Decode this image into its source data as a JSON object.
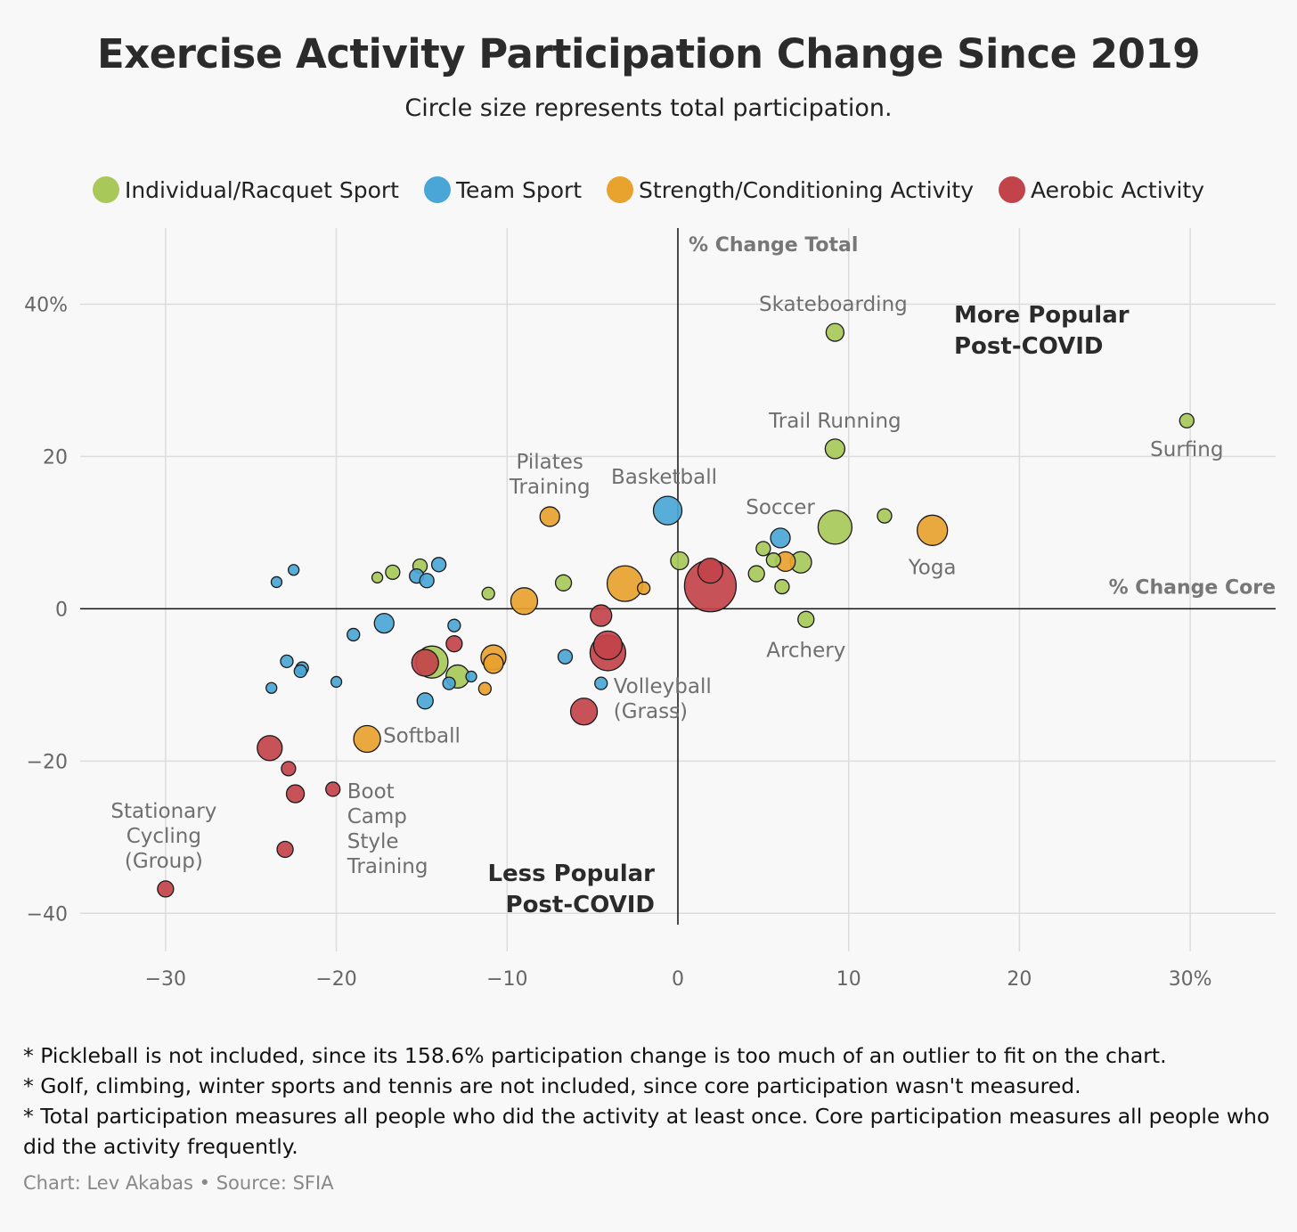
{
  "header": {
    "title": "Exercise Activity Participation Change Since 2019",
    "subtitle": "Circle size represents total participation."
  },
  "chart_data": {
    "type": "scatter",
    "title": "Exercise Activity Participation Change Since 2019",
    "subtitle": "Circle size represents total participation.",
    "xlabel": "% Change Core",
    "ylabel": "% Change Total",
    "xlim": [
      -35,
      35
    ],
    "ylim": [
      -45,
      50
    ],
    "x_ticks": [
      -30,
      -20,
      -10,
      0,
      10,
      20,
      30
    ],
    "x_tick_labels": [
      "−30",
      "−20",
      "−10",
      "0",
      "10",
      "20",
      "30%"
    ],
    "y_ticks": [
      -40,
      -20,
      0,
      20,
      40
    ],
    "y_tick_labels": [
      "−40",
      "−20",
      "0",
      "20",
      "40%"
    ],
    "grid": true,
    "legend_position": "top",
    "size_encoding": "total participation",
    "categories": {
      "individual": {
        "label": "Individual/Racquet Sport",
        "color": "#a8c95a"
      },
      "team": {
        "label": "Team Sport",
        "color": "#4aa6d6"
      },
      "strength": {
        "label": "Strength/Conditioning Activity",
        "color": "#e8a22e"
      },
      "aerobic": {
        "label": "Aerobic Activity",
        "color": "#c2444a"
      }
    },
    "quadrant_labels": [
      {
        "text": [
          "More Popular",
          "Post-COVID"
        ],
        "position": "upper-right"
      },
      {
        "text": [
          "Less Popular",
          "Post-COVID"
        ],
        "position": "lower-left"
      }
    ],
    "points": [
      {
        "label": "Skateboarding",
        "x": 9.2,
        "y": 36.3,
        "cat": "individual",
        "size": 10
      },
      {
        "label": "Trail Running",
        "x": 9.2,
        "y": 21.0,
        "cat": "individual",
        "size": 11
      },
      {
        "label": "Surfing",
        "x": 29.8,
        "y": 24.7,
        "cat": "individual",
        "size": 8
      },
      {
        "label": "Basketball",
        "x": -0.6,
        "y": 12.9,
        "cat": "team",
        "size": 16
      },
      {
        "label": "Soccer",
        "x": 6.0,
        "y": 9.3,
        "cat": "team",
        "size": 11
      },
      {
        "label": "Pilates Training",
        "x": -7.5,
        "y": 12.1,
        "cat": "strength",
        "size": 11
      },
      {
        "label": "Yoga",
        "x": 14.9,
        "y": 10.3,
        "cat": "strength",
        "size": 17
      },
      {
        "label": "Archery",
        "x": 7.5,
        "y": -1.4,
        "cat": "individual",
        "size": 9
      },
      {
        "label": "Volleyball (Grass)",
        "x": -4.5,
        "y": -9.8,
        "cat": "team",
        "size": 7
      },
      {
        "label": "Softball",
        "x": -18.2,
        "y": -17.1,
        "cat": "strength",
        "size": 15
      },
      {
        "label": "Boot Camp Style Training",
        "x": -20.2,
        "y": -23.7,
        "cat": "aerobic",
        "size": 8
      },
      {
        "label": "Stationary Cycling (Group)",
        "x": -30.0,
        "y": -36.8,
        "cat": "aerobic",
        "size": 9
      },
      {
        "label": "",
        "x": 9.2,
        "y": 10.7,
        "cat": "individual",
        "size": 19
      },
      {
        "label": "",
        "x": 12.1,
        "y": 12.2,
        "cat": "individual",
        "size": 8
      },
      {
        "label": "",
        "x": 7.2,
        "y": 6.1,
        "cat": "individual",
        "size": 12
      },
      {
        "label": "",
        "x": 6.1,
        "y": 2.9,
        "cat": "individual",
        "size": 8
      },
      {
        "label": "",
        "x": 4.6,
        "y": 4.6,
        "cat": "individual",
        "size": 9
      },
      {
        "label": "",
        "x": 5.6,
        "y": 6.4,
        "cat": "individual",
        "size": 8
      },
      {
        "label": "",
        "x": 5.0,
        "y": 7.9,
        "cat": "individual",
        "size": 8
      },
      {
        "label": "",
        "x": 0.1,
        "y": 6.3,
        "cat": "individual",
        "size": 10
      },
      {
        "label": "",
        "x": 6.3,
        "y": 6.2,
        "cat": "strength",
        "size": 11
      },
      {
        "label": "",
        "x": 1.9,
        "y": 3.0,
        "cat": "aerobic",
        "size": 29
      },
      {
        "label": "",
        "x": 1.9,
        "y": 5.0,
        "cat": "aerobic",
        "size": 14
      },
      {
        "label": "",
        "x": -3.1,
        "y": 3.3,
        "cat": "strength",
        "size": 20
      },
      {
        "label": "",
        "x": -2.0,
        "y": 2.7,
        "cat": "strength",
        "size": 7
      },
      {
        "label": "",
        "x": -6.7,
        "y": 3.4,
        "cat": "individual",
        "size": 9
      },
      {
        "label": "",
        "x": -9.0,
        "y": 1.0,
        "cat": "strength",
        "size": 15
      },
      {
        "label": "",
        "x": -11.1,
        "y": 2.0,
        "cat": "individual",
        "size": 7
      },
      {
        "label": "",
        "x": -4.5,
        "y": -0.9,
        "cat": "aerobic",
        "size": 12
      },
      {
        "label": "",
        "x": -4.1,
        "y": -4.8,
        "cat": "aerobic",
        "size": 16
      },
      {
        "label": "",
        "x": -4.1,
        "y": -5.8,
        "cat": "aerobic",
        "size": 20
      },
      {
        "label": "",
        "x": -5.5,
        "y": -13.5,
        "cat": "aerobic",
        "size": 15
      },
      {
        "label": "",
        "x": -6.6,
        "y": -6.3,
        "cat": "team",
        "size": 8
      },
      {
        "label": "",
        "x": -10.8,
        "y": -6.4,
        "cat": "strength",
        "size": 14
      },
      {
        "label": "",
        "x": -10.8,
        "y": -7.2,
        "cat": "strength",
        "size": 11
      },
      {
        "label": "",
        "x": -11.3,
        "y": -10.5,
        "cat": "strength",
        "size": 7
      },
      {
        "label": "",
        "x": -12.1,
        "y": -8.9,
        "cat": "team",
        "size": 6
      },
      {
        "label": "",
        "x": -12.9,
        "y": -8.9,
        "cat": "individual",
        "size": 13
      },
      {
        "label": "",
        "x": -13.4,
        "y": -9.8,
        "cat": "team",
        "size": 7
      },
      {
        "label": "",
        "x": -13.1,
        "y": -4.6,
        "cat": "aerobic",
        "size": 9
      },
      {
        "label": "",
        "x": -13.1,
        "y": -2.2,
        "cat": "team",
        "size": 7
      },
      {
        "label": "",
        "x": -14.4,
        "y": -7.0,
        "cat": "individual",
        "size": 18
      },
      {
        "label": "",
        "x": -14.8,
        "y": -7.1,
        "cat": "aerobic",
        "size": 15
      },
      {
        "label": "",
        "x": -14.8,
        "y": -12.1,
        "cat": "team",
        "size": 9
      },
      {
        "label": "",
        "x": -17.2,
        "y": -1.9,
        "cat": "team",
        "size": 11
      },
      {
        "label": "",
        "x": -19.0,
        "y": -3.4,
        "cat": "team",
        "size": 7
      },
      {
        "label": "",
        "x": -20.0,
        "y": -9.6,
        "cat": "team",
        "size": 6
      },
      {
        "label": "",
        "x": -22.0,
        "y": -7.8,
        "cat": "team",
        "size": 7
      },
      {
        "label": "",
        "x": -22.1,
        "y": -8.2,
        "cat": "team",
        "size": 7
      },
      {
        "label": "",
        "x": -22.9,
        "y": -6.9,
        "cat": "team",
        "size": 7
      },
      {
        "label": "",
        "x": -23.8,
        "y": -10.4,
        "cat": "team",
        "size": 6
      },
      {
        "label": "",
        "x": -23.9,
        "y": -18.3,
        "cat": "aerobic",
        "size": 14
      },
      {
        "label": "",
        "x": -22.8,
        "y": -21.0,
        "cat": "aerobic",
        "size": 8
      },
      {
        "label": "",
        "x": -22.4,
        "y": -24.3,
        "cat": "aerobic",
        "size": 10
      },
      {
        "label": "",
        "x": -23.0,
        "y": -31.6,
        "cat": "aerobic",
        "size": 9
      },
      {
        "label": "",
        "x": -23.5,
        "y": 3.5,
        "cat": "team",
        "size": 6
      },
      {
        "label": "",
        "x": -22.5,
        "y": 5.1,
        "cat": "team",
        "size": 6
      },
      {
        "label": "",
        "x": -17.6,
        "y": 4.1,
        "cat": "individual",
        "size": 6
      },
      {
        "label": "",
        "x": -16.7,
        "y": 4.8,
        "cat": "individual",
        "size": 8
      },
      {
        "label": "",
        "x": -15.1,
        "y": 5.6,
        "cat": "individual",
        "size": 8
      },
      {
        "label": "",
        "x": -15.3,
        "y": 4.3,
        "cat": "team",
        "size": 8
      },
      {
        "label": "",
        "x": -14.7,
        "y": 3.7,
        "cat": "team",
        "size": 8
      },
      {
        "label": "",
        "x": -14.0,
        "y": 5.8,
        "cat": "team",
        "size": 8
      }
    ]
  },
  "footer": {
    "notes": [
      "* Pickleball is not included, since its 158.6% participation change is too much of an outlier to fit on the chart.",
      "* Golf, climbing, winter sports and tennis are not included, since core participation wasn't measured.",
      "* Total participation measures all people who did the activity at least once. Core participation measures all people who did the activity frequently."
    ],
    "credit": "Chart: Lev Akabas • Source: SFIA"
  }
}
